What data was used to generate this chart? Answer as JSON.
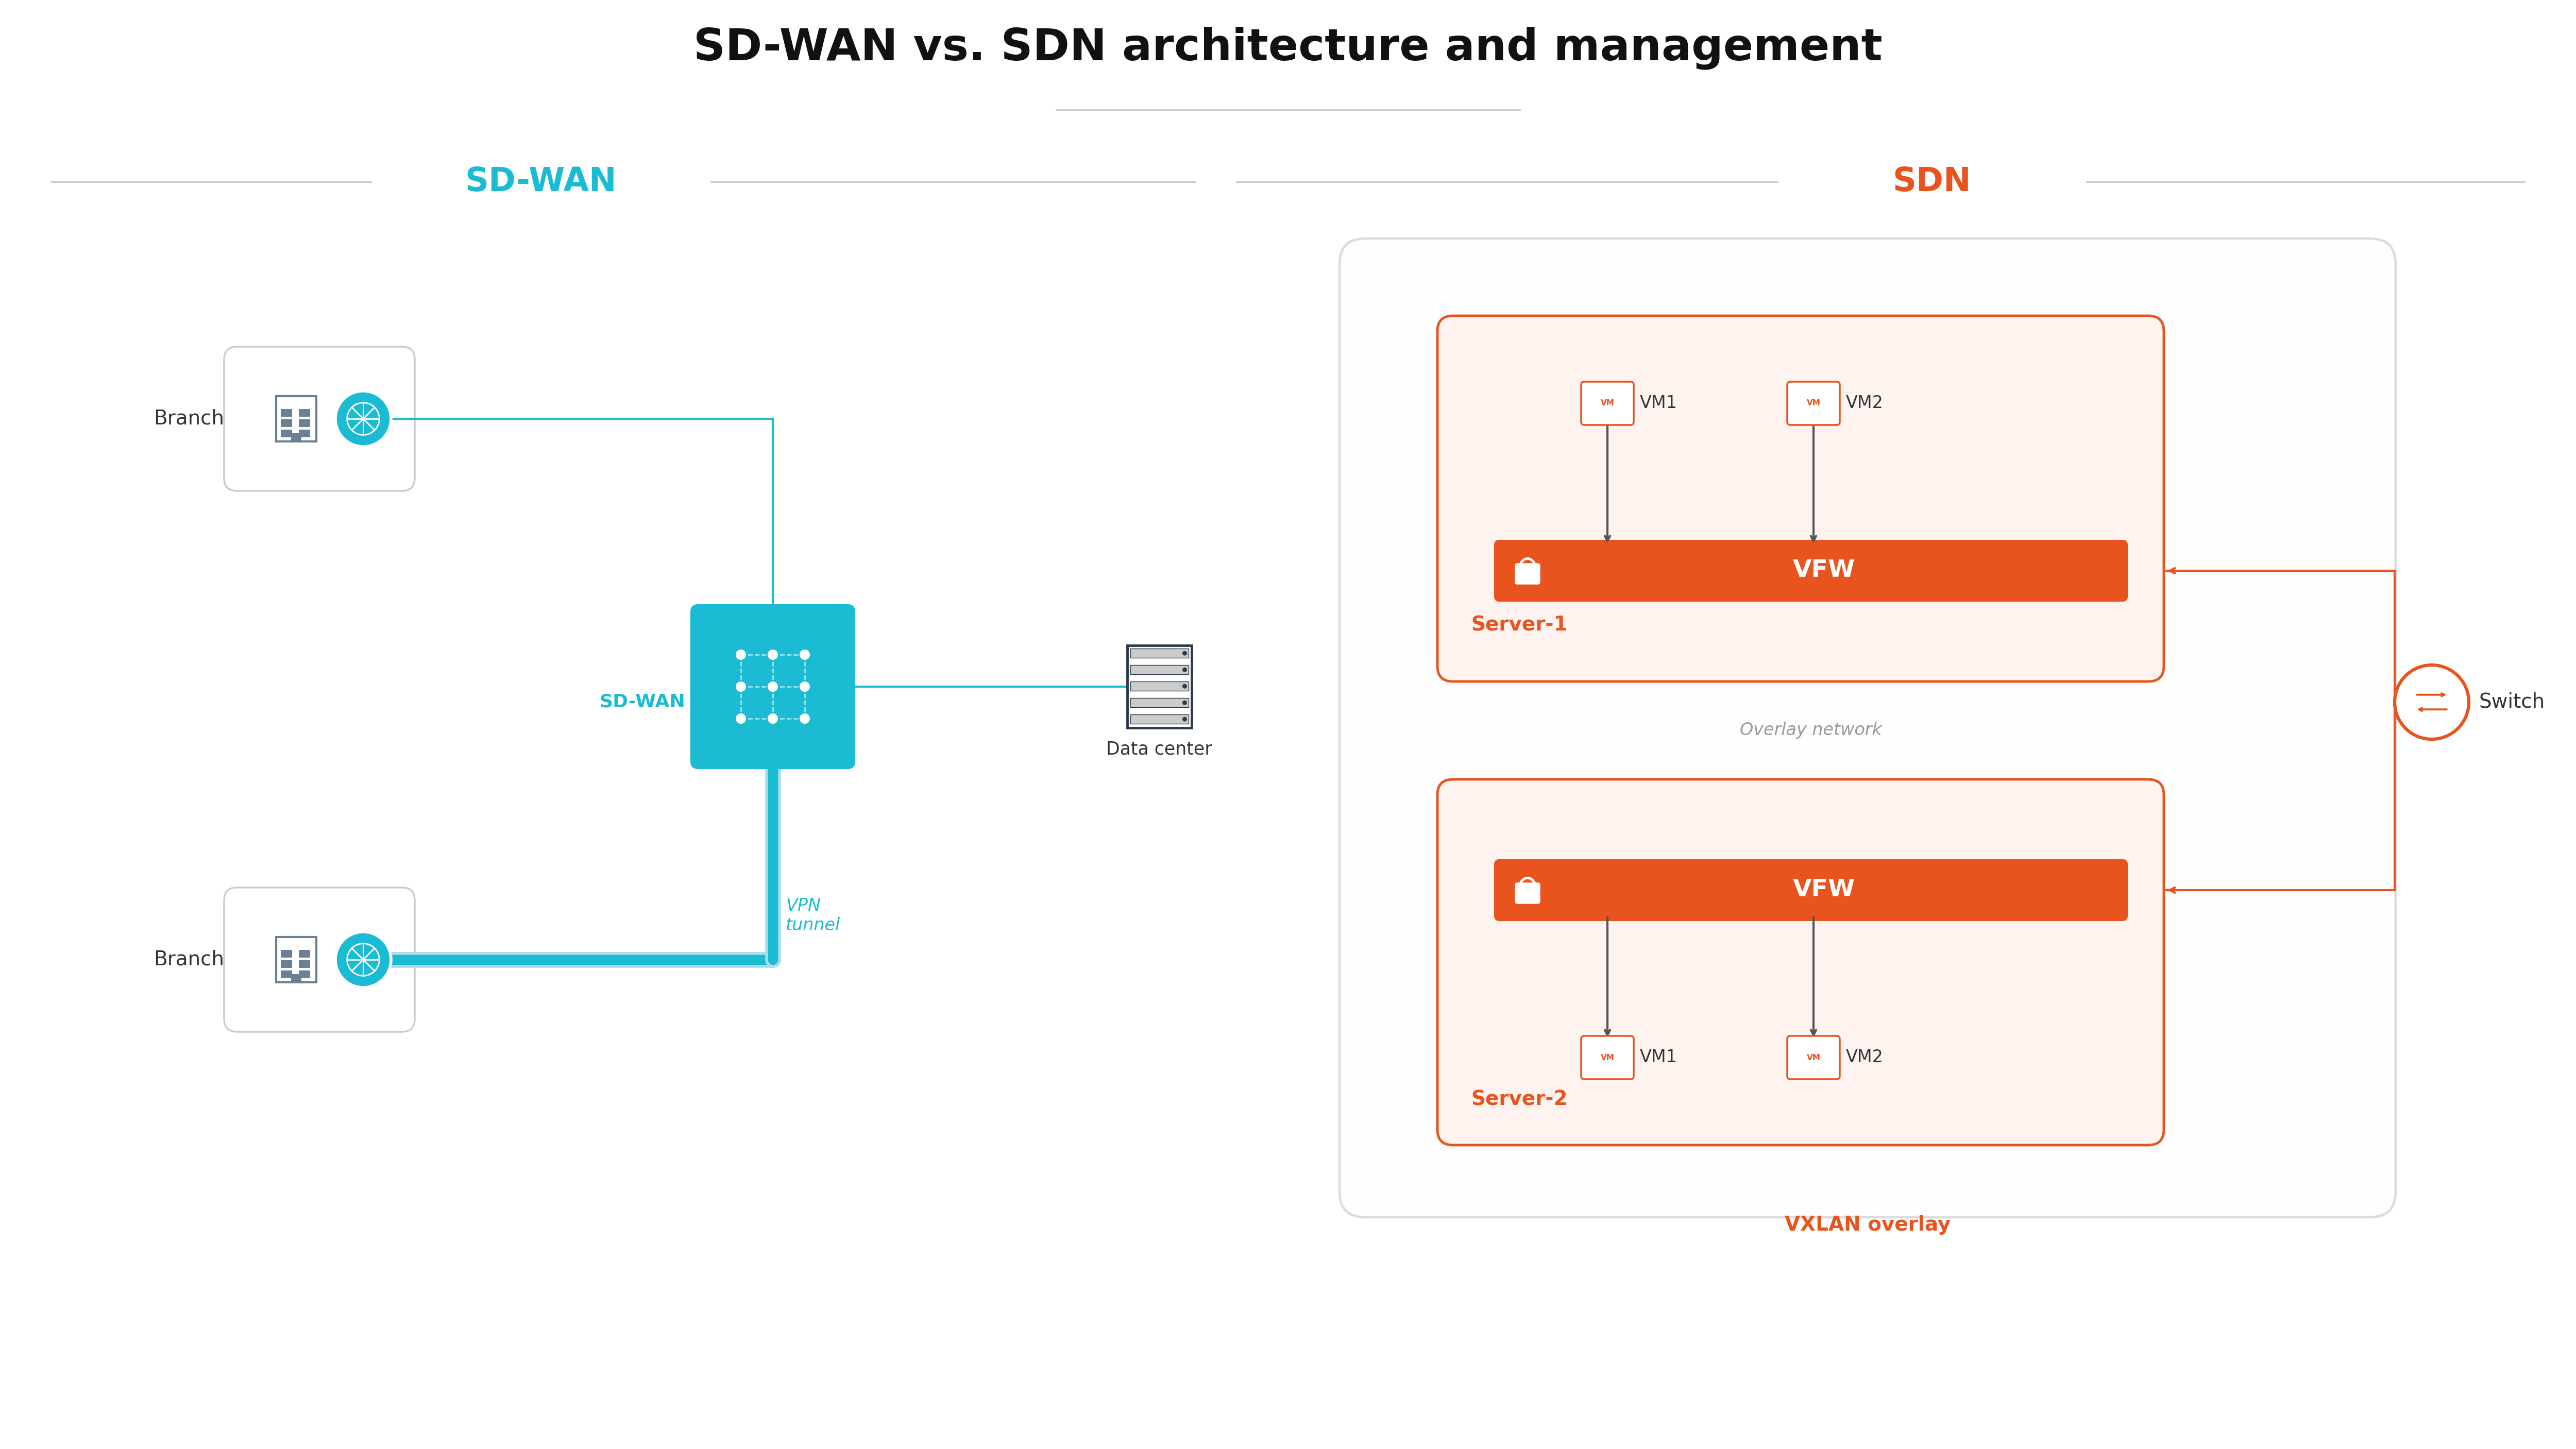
{
  "title": "SD-WAN vs. SDN architecture and management",
  "bg_color": "#ffffff",
  "teal": "#1BBBD4",
  "teal_dark": "#17A5BC",
  "teal_light": "#A8DCE8",
  "teal_vlight": "#C8EAF2",
  "orange": "#E8531E",
  "orange_bg": "#FEF3EF",
  "gray_line": "#CCCCCC",
  "gray_text": "#333333",
  "gray_icon": "#8A9BAB",
  "sdwan_section": "SD-WAN",
  "sdn_section": "SDN",
  "branch_label": "Branch",
  "sdwan_node_label": "SD-WAN",
  "datacenter_label": "Data center",
  "vpn_tunnel_label": "VPN\ntunnel",
  "server1_label": "Server-1",
  "server2_label": "Server-2",
  "vfw_label": "VFW",
  "overlay_label": "Overlay network",
  "vxlan_label": "VXLAN overlay",
  "switch_label": "Switch",
  "vm1_label": "VM1",
  "vm2_label": "VM2",
  "figw": 50,
  "figh": 28.13,
  "xlim": 50,
  "ylim": 28.13
}
